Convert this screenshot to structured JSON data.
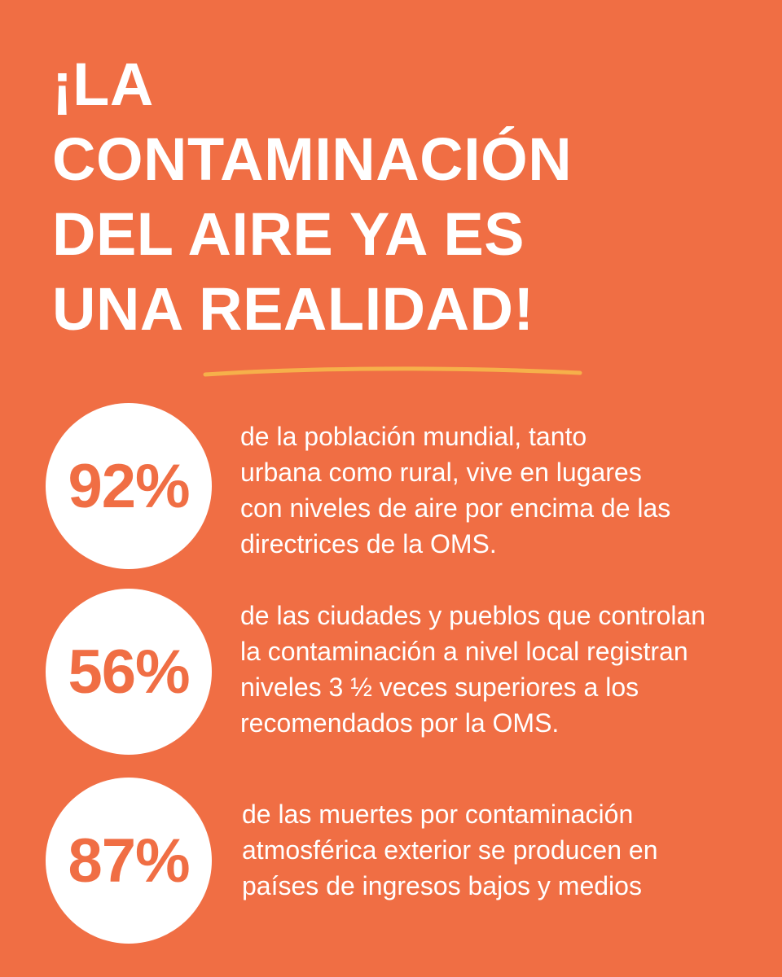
{
  "colors": {
    "background": "#f06e44",
    "text": "#ffffff",
    "circle": "#ffffff",
    "percentage": "#f06e44",
    "underline": "#f6b04a"
  },
  "headline": {
    "lines": [
      "¡LA",
      "CONTAMINACIÓN",
      "DEL AIRE YA ES",
      "UNA REALIDAD!"
    ]
  },
  "stats": [
    {
      "value": "92%",
      "lines": [
        "de la población mundial, tanto",
        "urbana como rural, vive en lugares",
        "con niveles de aire por encima de las",
        "directrices de la OMS."
      ]
    },
    {
      "value": "56%",
      "lines": [
        "de las ciudades y pueblos que controlan",
        "la contaminación a nivel local registran",
        "niveles 3 ½ veces superiores a los",
        "recomendados por la OMS."
      ]
    },
    {
      "value": "87%",
      "lines": [
        "de las muertes por contaminación",
        "atmosférica exterior se producen en",
        "países de ingresos bajos y medios"
      ]
    }
  ]
}
